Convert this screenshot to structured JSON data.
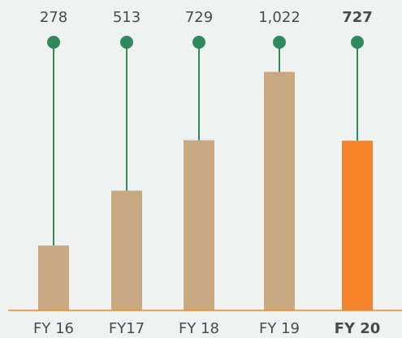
{
  "chart_data": {
    "type": "bar",
    "categories": [
      "FY 16",
      "FY17",
      "FY 18",
      "FY 19",
      "FY 20"
    ],
    "values": [
      278,
      513,
      729,
      1022,
      727
    ],
    "value_labels": [
      "278",
      "513",
      "729",
      "1,022",
      "727"
    ],
    "colors": [
      "#c9a982",
      "#c9a982",
      "#c9a982",
      "#c9a982",
      "#f5842a"
    ],
    "marker_color": "#2f8a5b",
    "baseline_color": "#f5842a",
    "highlight_index": 4,
    "ylim": [
      0,
      1330
    ]
  }
}
